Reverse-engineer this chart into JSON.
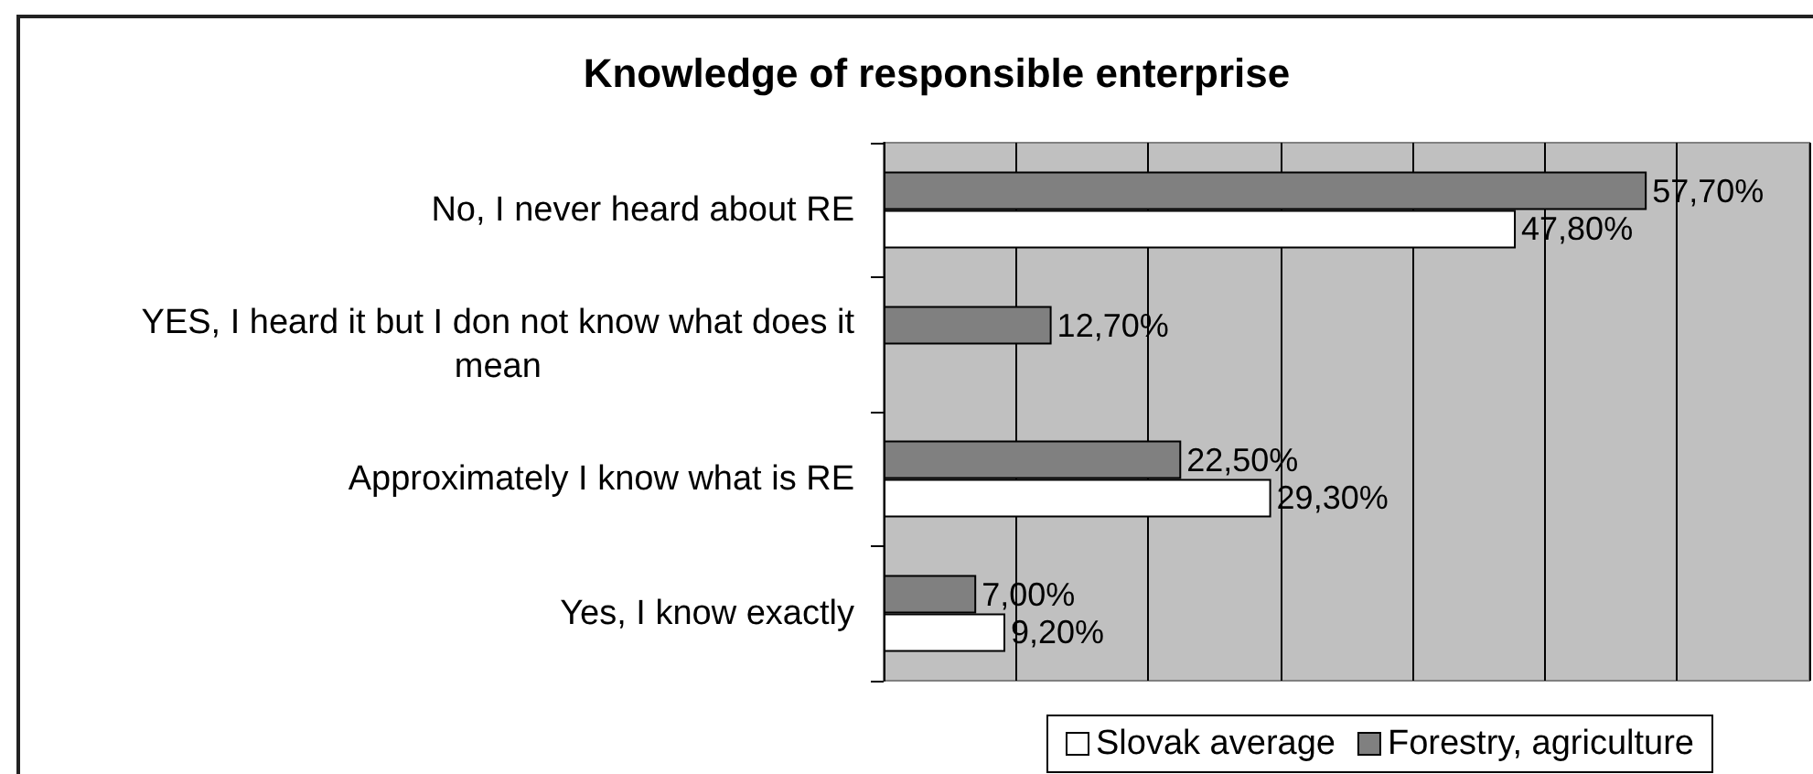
{
  "chart_data": {
    "type": "bar",
    "orientation": "horizontal",
    "title": "Knowledge of responsible enterprise",
    "categories": [
      "No, I never heard about RE",
      "YES, I heard it but I don not know what does it mean",
      "Approximately I know what is RE",
      "Yes, I know exactly"
    ],
    "series": [
      {
        "name": "Slovak average",
        "color": "#ffffff",
        "values": [
          47.8,
          null,
          29.3,
          9.2
        ],
        "value_labels": [
          "47,80%",
          null,
          "29,30%",
          "9,20%"
        ]
      },
      {
        "name": "Forestry, agriculture",
        "color": "#808080",
        "values": [
          57.7,
          12.7,
          22.5,
          7.0
        ],
        "value_labels": [
          "57,70%",
          "12,70%",
          "22,50%",
          "7,00%"
        ]
      }
    ],
    "xlim": [
      0,
      70
    ],
    "xticks": [
      {
        "value": 0,
        "label": null
      },
      {
        "value": 10,
        "label": null
      },
      {
        "value": 20,
        "label": null
      },
      {
        "value": 30,
        "label": null
      },
      {
        "value": 40,
        "label": null
      },
      {
        "value": 50,
        "label": null
      },
      {
        "value": 60,
        "label": null
      },
      {
        "value": 70,
        "label": null
      }
    ],
    "tick_labels": "y",
    "grid": "x",
    "legend": "bottom"
  }
}
